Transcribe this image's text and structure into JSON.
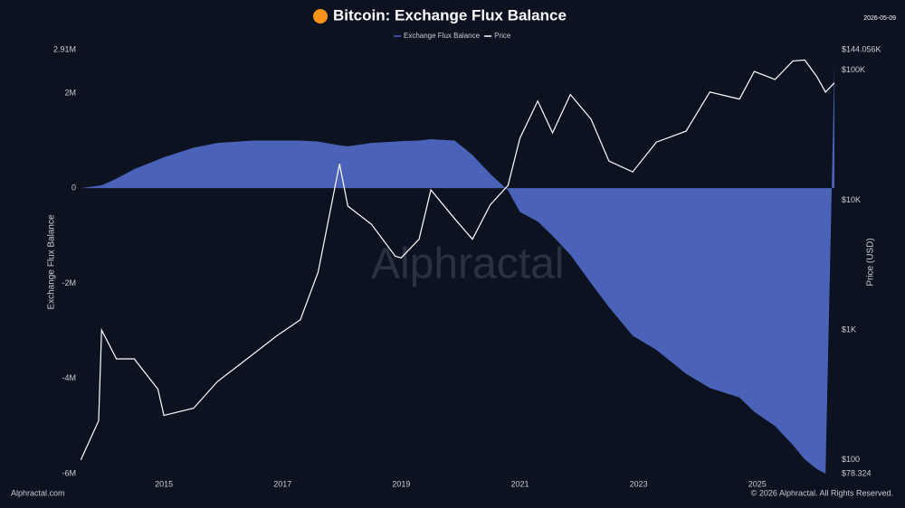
{
  "chart_data": {
    "type": "area-line",
    "title": "Bitcoin: Exchange Flux Balance",
    "date": "2026-05-09",
    "ylabel": "Exchange Flux Balance",
    "y2label": "Price (USD)",
    "watermark": "Alphractal",
    "footer_left": "Alphractal.com",
    "footer_right": "© 2026 Alphractal. All Rights Reserved.",
    "y2log": true,
    "x": [
      2013.6,
      2013.9,
      2013.95,
      2014.2,
      2014.5,
      2014.9,
      2015.0,
      2015.5,
      2015.9,
      2016.5,
      2016.9,
      2017.3,
      2017.6,
      2017.96,
      2018.1,
      2018.5,
      2018.9,
      2019.0,
      2019.3,
      2019.5,
      2019.9,
      2020.2,
      2020.5,
      2020.8,
      2021.0,
      2021.3,
      2021.55,
      2021.85,
      2022.2,
      2022.5,
      2022.9,
      2023.3,
      2023.8,
      2024.2,
      2024.7,
      2024.95,
      2025.3,
      2025.6,
      2025.8,
      2026.0,
      2026.15,
      2026.3
    ],
    "series": [
      {
        "name": "Exchange Flux Balance",
        "color": "#4a63b8",
        "values": [
          0,
          50000,
          60000,
          200000,
          400000,
          600000,
          650000,
          850000,
          950000,
          1000000,
          1000000,
          1000000,
          980000,
          900000,
          880000,
          950000,
          980000,
          990000,
          1000000,
          1030000,
          1000000,
          700000,
          300000,
          -50000,
          -500000,
          -700000,
          -1000000,
          -1400000,
          -2000000,
          -2500000,
          -3100000,
          -3400000,
          -3900000,
          -4200000,
          -4400000,
          -4700000,
          -5000000,
          -5400000,
          -5700000,
          -5900000,
          -6000000,
          2580000
        ]
      },
      {
        "name": "Price",
        "color": "#ffffff",
        "axis": "y2",
        "values": [
          100,
          200,
          1000,
          600,
          600,
          350,
          220,
          250,
          400,
          650,
          900,
          1200,
          2800,
          19000,
          9000,
          6500,
          3700,
          3600,
          5000,
          12000,
          7200,
          5000,
          9200,
          13000,
          30000,
          58000,
          33000,
          65000,
          42000,
          20000,
          16500,
          28000,
          34000,
          68000,
          60000,
          98000,
          85000,
          118000,
          120000,
          90000,
          68000,
          80000
        ]
      }
    ],
    "xlim": [
      2013.58,
      2026.3
    ],
    "xticks": [
      2015,
      2017,
      2019,
      2021,
      2023,
      2025
    ],
    "ylim": [
      -6000000,
      2910000
    ],
    "yticks": [
      {
        "value": -6000000,
        "label": "-6M"
      },
      {
        "value": -4000000,
        "label": "-4M"
      },
      {
        "value": -2000000,
        "label": "-2M"
      },
      0,
      {
        "value": 2000000,
        "label": "2M"
      },
      {
        "value": 2910000,
        "label": "2.91M"
      }
    ],
    "y2lim": [
      78.324,
      144056
    ],
    "y2ticks": [
      {
        "value": 78.324,
        "label": "$78.324"
      },
      {
        "value": 100,
        "label": "$100"
      },
      {
        "value": 1000,
        "label": "$1K"
      },
      {
        "value": 10000,
        "label": "$10K"
      },
      {
        "value": 100000,
        "label": "$100K"
      },
      {
        "value": 144056,
        "label": "$144.056K"
      }
    ]
  }
}
